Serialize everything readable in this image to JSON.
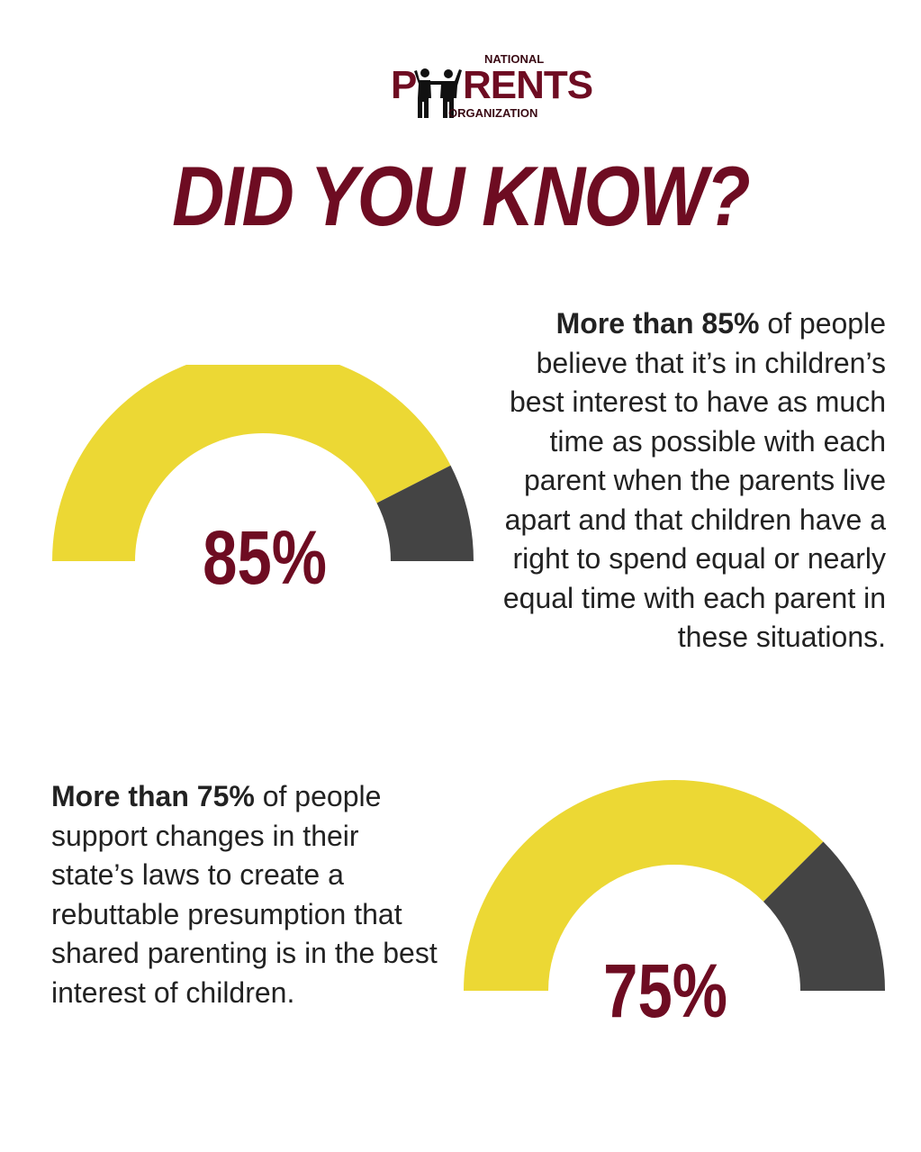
{
  "logo": {
    "top_text": "NATIONAL",
    "main_text_p": "P",
    "main_text_rest": "RENTS",
    "bottom_text": "ORGANIZATION"
  },
  "title": "DID YOU KNOW?",
  "colors": {
    "accent": "#6e0c22",
    "gauge_fill": "#ecd834",
    "gauge_remainder": "#444444",
    "text": "#222222"
  },
  "stats": [
    {
      "percent_label": "85%",
      "value": 85,
      "bold_text": "More than 85%",
      "text": " of people believe that it’s in children’s best interest to have as much time as possible with each parent when the parents live apart and that children have a right to spend equal or nearly equal time with each parent in these situations."
    },
    {
      "percent_label": "75%",
      "value": 75,
      "bold_text": "More than 75%",
      "text": " of people support changes in their state’s laws to create a rebuttable presumption that shared parenting is in the best interest of children."
    }
  ]
}
